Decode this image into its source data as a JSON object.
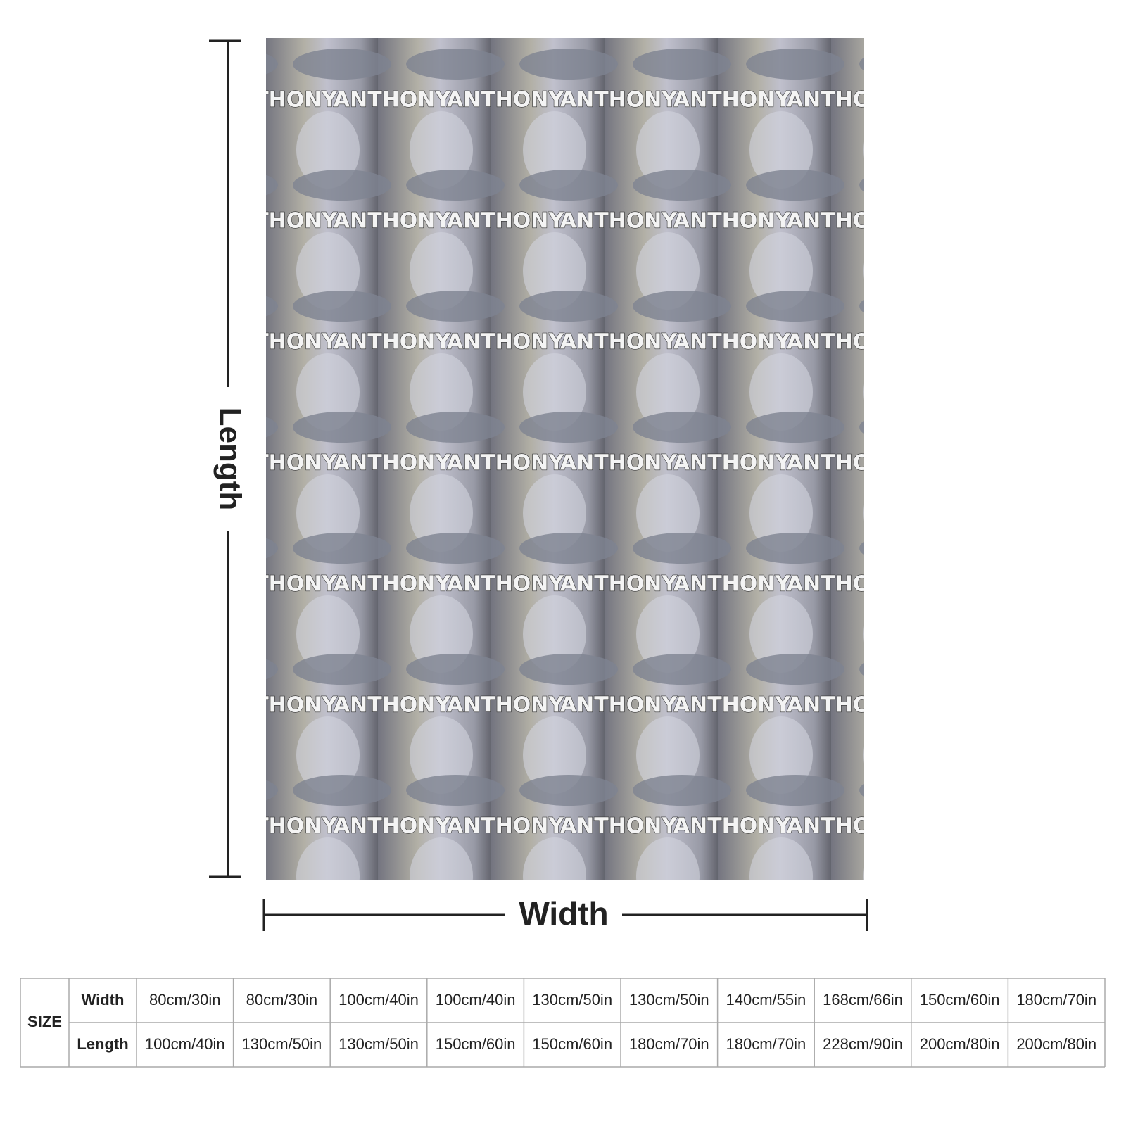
{
  "pattern": {
    "text": "ANTHONY"
  },
  "dimensions": {
    "length": "Length",
    "width": "Width"
  },
  "size_table": {
    "header": "SIZE",
    "row_labels": [
      "Width",
      "Length"
    ],
    "rows": [
      [
        "80cm/30in",
        "80cm/30in",
        "100cm/40in",
        "100cm/40in",
        "130cm/50in",
        "130cm/50in",
        "140cm/55in",
        "168cm/66in",
        "150cm/60in",
        "180cm/70in"
      ],
      [
        "100cm/40in",
        "130cm/50in",
        "130cm/50in",
        "150cm/60in",
        "150cm/60in",
        "180cm/70in",
        "180cm/70in",
        "228cm/90in",
        "200cm/80in",
        "200cm/80in"
      ]
    ]
  }
}
